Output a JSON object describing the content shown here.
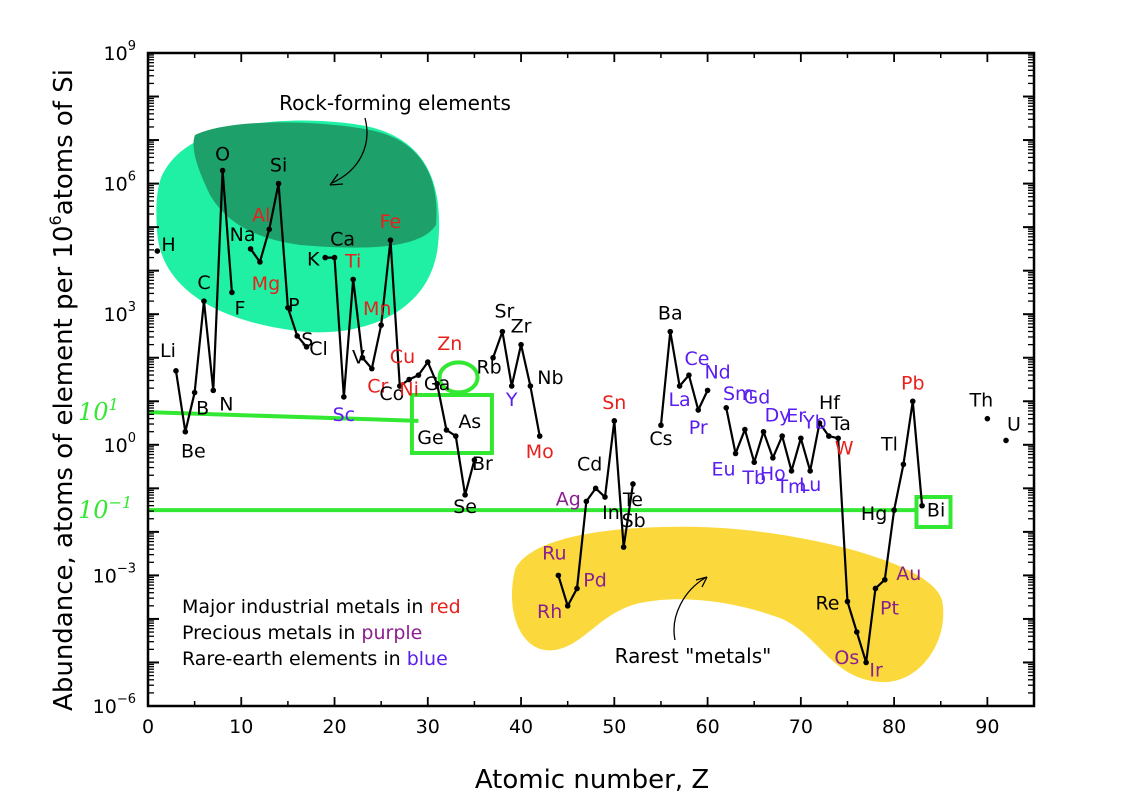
{
  "chart_data": {
    "type": "line",
    "scale_y": "log",
    "xlabel": "Atomic number, Z",
    "ylabel_prefix": "Abundance, atoms of element per 10",
    "ylabel_exp": "6",
    "ylabel_suffix": "atoms of Si",
    "xlim": [
      0,
      95
    ],
    "ylim_exp": [
      -6,
      9
    ],
    "x_ticks": [
      "0",
      "10",
      "20",
      "30",
      "40",
      "50",
      "60",
      "70",
      "80",
      "90"
    ],
    "y_ticks": [
      {
        "base": "10",
        "exp": "9"
      },
      {
        "base": "10",
        "exp": "6"
      },
      {
        "base": "10",
        "exp": "3"
      },
      {
        "base": "10",
        "exp": "0"
      },
      {
        "base": "10",
        "exp": "−3"
      },
      {
        "base": "10",
        "exp": "−6"
      }
    ],
    "colors": {
      "red": "#e8201c",
      "purple": "#8b1f8f",
      "blue": "#5a1ef0",
      "black": "#000000",
      "green": "#33e833",
      "teal": "#1ff0a4",
      "teal_dark": "#1ea06a",
      "yellow": "#fbd93c"
    },
    "series": [
      {
        "points": [
          {
            "z": 1,
            "sym": "H",
            "log": 4.45,
            "c": "black",
            "pos": "lab"
          },
          {
            "z": 3,
            "sym": "Li",
            "log": 1.7,
            "c": "black"
          },
          {
            "z": 4,
            "sym": "Be",
            "log": 0.3,
            "c": "black"
          },
          {
            "z": 5,
            "sym": "B",
            "log": 1.2,
            "c": "black"
          },
          {
            "z": 6,
            "sym": "C",
            "log": 3.3,
            "c": "black"
          },
          {
            "z": 7,
            "sym": "N",
            "log": 1.25,
            "c": "black"
          },
          {
            "z": 8,
            "sym": "O",
            "log": 6.3,
            "c": "black"
          },
          {
            "z": 9,
            "sym": "F",
            "log": 3.5,
            "c": "black"
          },
          {
            "z": 11,
            "sym": "Na",
            "log": 4.5,
            "c": "black"
          },
          {
            "z": 12,
            "sym": "Mg",
            "log": 4.2,
            "c": "red"
          },
          {
            "z": 13,
            "sym": "Al",
            "log": 4.95,
            "c": "red"
          },
          {
            "z": 14,
            "sym": "Si",
            "log": 6.0,
            "c": "black"
          },
          {
            "z": 15,
            "sym": "P",
            "log": 3.15,
            "c": "black"
          },
          {
            "z": 16,
            "sym": "S",
            "log": 2.5,
            "c": "black"
          },
          {
            "z": 17,
            "sym": "Cl",
            "log": 2.25,
            "c": "black"
          },
          {
            "z": 19,
            "sym": "K",
            "log": 4.3,
            "c": "black"
          },
          {
            "z": 20,
            "sym": "Ca",
            "log": 4.3,
            "c": "black"
          },
          {
            "z": 21,
            "sym": "Sc",
            "log": 1.1,
            "c": "blue"
          },
          {
            "z": 22,
            "sym": "Ti",
            "log": 3.8,
            "c": "red"
          },
          {
            "z": 23,
            "sym": "V",
            "log": 2.0,
            "c": "black"
          },
          {
            "z": 24,
            "sym": "Cr",
            "log": 1.75,
            "c": "red"
          },
          {
            "z": 25,
            "sym": "Mn",
            "log": 2.75,
            "c": "red"
          },
          {
            "z": 26,
            "sym": "Fe",
            "log": 4.7,
            "c": "red"
          },
          {
            "z": 27,
            "sym": "Co",
            "log": 1.35,
            "c": "black"
          },
          {
            "z": 28,
            "sym": "Ni",
            "log": 1.5,
            "c": "red"
          },
          {
            "z": 29,
            "sym": "Cu",
            "log": 1.6,
            "c": "red"
          },
          {
            "z": 30,
            "sym": "Zn",
            "log": 1.9,
            "c": "red"
          },
          {
            "z": 31,
            "sym": "Ga",
            "log": 1.4,
            "c": "black"
          },
          {
            "z": 32,
            "sym": "Ge",
            "log": 0.34,
            "c": "black"
          },
          {
            "z": 33,
            "sym": "As",
            "log": 0.2,
            "c": "black"
          },
          {
            "z": 34,
            "sym": "Se",
            "log": -1.15,
            "c": "black"
          },
          {
            "z": 35,
            "sym": "Br",
            "log": -0.35,
            "c": "black"
          },
          {
            "z": 37,
            "sym": "Rb",
            "log": 2.0,
            "c": "black"
          },
          {
            "z": 38,
            "sym": "Sr",
            "log": 2.6,
            "c": "black"
          },
          {
            "z": 39,
            "sym": "Y",
            "log": 1.35,
            "c": "blue"
          },
          {
            "z": 40,
            "sym": "Zr",
            "log": 2.3,
            "c": "black"
          },
          {
            "z": 41,
            "sym": "Nb",
            "log": 1.35,
            "c": "black"
          },
          {
            "z": 42,
            "sym": "Mo",
            "log": 0.2,
            "c": "red"
          },
          {
            "z": 44,
            "sym": "Ru",
            "log": -3.0,
            "c": "purple"
          },
          {
            "z": 45,
            "sym": "Rh",
            "log": -3.7,
            "c": "purple"
          },
          {
            "z": 46,
            "sym": "Pd",
            "log": -3.3,
            "c": "purple"
          },
          {
            "z": 47,
            "sym": "Ag",
            "log": -1.3,
            "c": "purple"
          },
          {
            "z": 48,
            "sym": "Cd",
            "log": -1.0,
            "c": "black"
          },
          {
            "z": 49,
            "sym": "In",
            "log": -1.2,
            "c": "black"
          },
          {
            "z": 50,
            "sym": "Sn",
            "log": 0.55,
            "c": "red"
          },
          {
            "z": 51,
            "sym": "Sb",
            "log": -2.35,
            "c": "black"
          },
          {
            "z": 52,
            "sym": "Te",
            "log": -0.9,
            "c": "black"
          },
          {
            "z": 55,
            "sym": "Cs",
            "log": 0.45,
            "c": "black"
          },
          {
            "z": 56,
            "sym": "Ba",
            "log": 2.6,
            "c": "black"
          },
          {
            "z": 57,
            "sym": "La",
            "log": 1.35,
            "c": "blue"
          },
          {
            "z": 58,
            "sym": "Ce",
            "log": 1.6,
            "c": "blue"
          },
          {
            "z": 59,
            "sym": "Pr",
            "log": 0.8,
            "c": "blue"
          },
          {
            "z": 60,
            "sym": "Nd",
            "log": 1.25,
            "c": "blue"
          },
          {
            "z": 62,
            "sym": "Sm",
            "log": 0.85,
            "c": "blue"
          },
          {
            "z": 63,
            "sym": "Eu",
            "log": -0.2,
            "c": "blue"
          },
          {
            "z": 64,
            "sym": "Gd",
            "log": 0.35,
            "c": "blue"
          },
          {
            "z": 65,
            "sym": "Tb",
            "log": -0.4,
            "c": "blue"
          },
          {
            "z": 66,
            "sym": "Dy",
            "log": 0.3,
            "c": "blue"
          },
          {
            "z": 67,
            "sym": "Ho",
            "log": -0.3,
            "c": "blue"
          },
          {
            "z": 68,
            "sym": "Er",
            "log": 0.2,
            "c": "blue"
          },
          {
            "z": 69,
            "sym": "Tm",
            "log": -0.6,
            "c": "blue"
          },
          {
            "z": 70,
            "sym": "Yb",
            "log": 0.15,
            "c": "blue"
          },
          {
            "z": 71,
            "sym": "Lu",
            "log": -0.6,
            "c": "blue"
          },
          {
            "z": 72,
            "sym": "Hf",
            "log": 0.5,
            "c": "black"
          },
          {
            "z": 73,
            "sym": "Ta",
            "log": 0.2,
            "c": "black"
          },
          {
            "z": 74,
            "sym": "W",
            "log": 0.15,
            "c": "red"
          },
          {
            "z": 75,
            "sym": "Re",
            "log": -3.6,
            "c": "black"
          },
          {
            "z": 76,
            "sym": "Os",
            "log": -4.3,
            "c": "purple"
          },
          {
            "z": 77,
            "sym": "Ir",
            "log": -5.0,
            "c": "purple"
          },
          {
            "z": 78,
            "sym": "Pt",
            "log": -3.3,
            "c": "purple"
          },
          {
            "z": 79,
            "sym": "Au",
            "log": -3.1,
            "c": "purple"
          },
          {
            "z": 80,
            "sym": "Hg",
            "log": -1.5,
            "c": "black"
          },
          {
            "z": 81,
            "sym": "Tl",
            "log": -0.45,
            "c": "black"
          },
          {
            "z": 82,
            "sym": "Pb",
            "log": 1.0,
            "c": "red"
          },
          {
            "z": 83,
            "sym": "Bi",
            "log": -1.4,
            "c": "black"
          },
          {
            "z": 90,
            "sym": "Th",
            "log": 0.6,
            "c": "black",
            "isolated": true
          },
          {
            "z": 92,
            "sym": "U",
            "log": 0.1,
            "c": "black",
            "isolated": true
          }
        ]
      }
    ],
    "annotations": {
      "rock_forming": "Rock-forming elements",
      "rarest_metals": "Rarest \"metals\"",
      "ref_high_base": "10",
      "ref_high_exp": "1",
      "ref_low_base": "10",
      "ref_low_exp": "−1",
      "ref_high_log": 0.75,
      "ref_low_log": -1.5
    },
    "legend_notes": [
      {
        "text": "Major industrial metals in ",
        "word": "red",
        "c": "red"
      },
      {
        "text": "Precious metals in ",
        "word": "purple",
        "c": "purple"
      },
      {
        "text": "Rare-earth elements in ",
        "word": "blue",
        "c": "blue"
      }
    ],
    "grid": false
  }
}
